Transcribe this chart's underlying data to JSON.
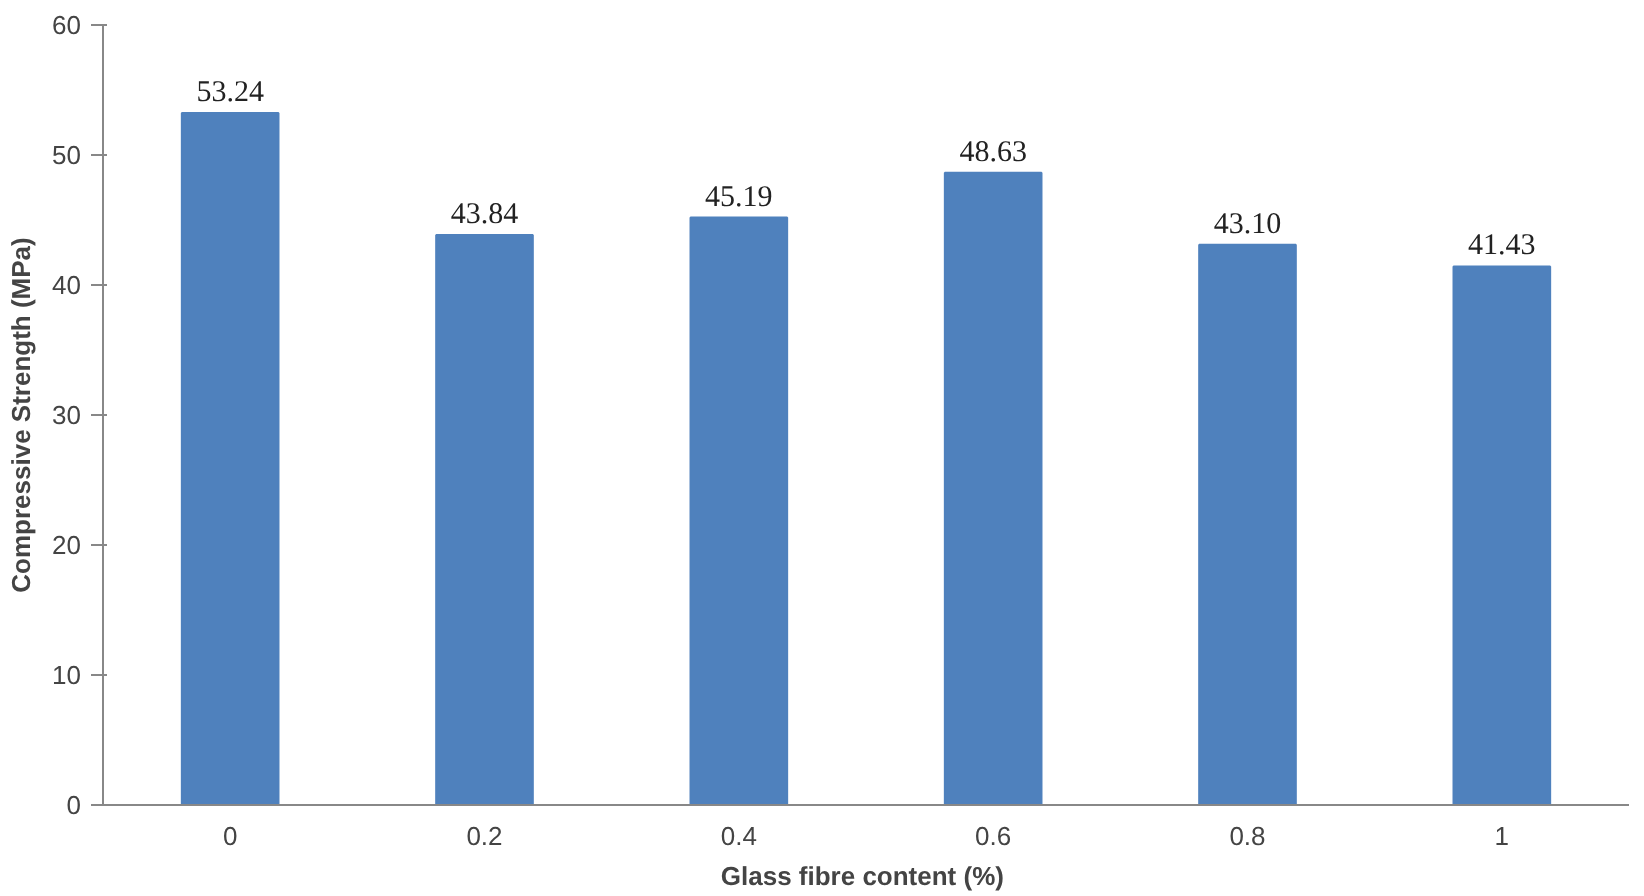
{
  "chart_data": {
    "type": "bar",
    "xlabel": "Glass  fibre content (%)",
    "ylabel": "Compressive Strength (MPa)",
    "categories": [
      "0",
      "0.2",
      "0.4",
      "0.6",
      "0.8",
      "1"
    ],
    "values": [
      53.24,
      43.84,
      45.19,
      48.63,
      43.1,
      41.43
    ],
    "value_labels": [
      "53.24",
      "43.84",
      "45.19",
      "48.63",
      "43.10",
      "41.43"
    ],
    "color": "#4f81bd",
    "ylim": [
      0,
      60
    ],
    "yticks": [
      0,
      10,
      20,
      30,
      40,
      50,
      60
    ],
    "grid": false
  }
}
